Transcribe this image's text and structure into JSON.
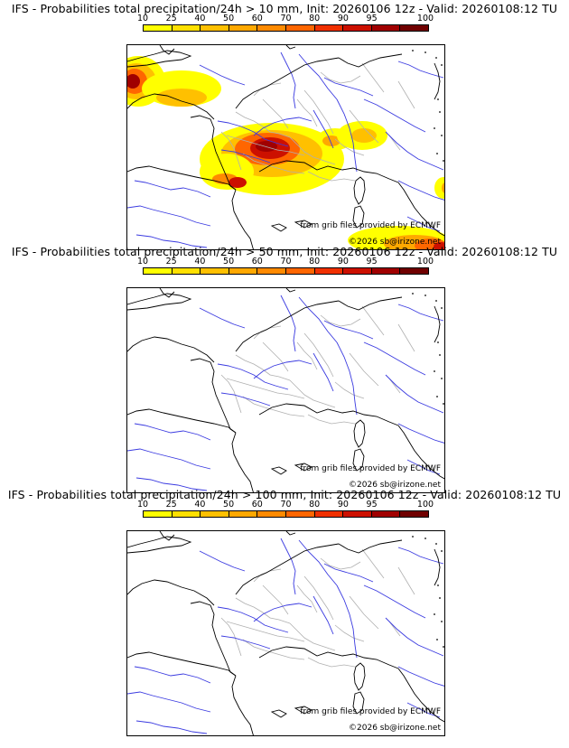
{
  "scale_ticks": [
    "10",
    "25",
    "40",
    "50",
    "60",
    "70",
    "80",
    "90",
    "95",
    "100"
  ],
  "scale_colors": [
    "#ffff00",
    "#ffe000",
    "#ffc000",
    "#ffa800",
    "#ff8a00",
    "#ff6600",
    "#f03000",
    "#cc1000",
    "#a00000",
    "#700000"
  ],
  "colors": {
    "coast": "#000000",
    "rivers": "#3a3ae0",
    "borders": "#b0b0b0"
  },
  "panels": [
    {
      "title": "IFS - Probabilities total precipitation/24h > 10 mm, Init: 20260106 12z - Valid: 20260108:12 TU",
      "credit_source": "from grib files provided by ECMWF",
      "credit_copyright": "©2026 sb@irizone.net",
      "has_precip": true
    },
    {
      "title": "IFS - Probabilities total precipitation/24h > 50 mm, Init: 20260106 12z - Valid: 20260108:12 TU",
      "credit_source": "from grib files provided by ECMWF",
      "credit_copyright": "©2026 sb@irizone.net",
      "has_precip": false
    },
    {
      "title": "IFS - Probabilities total precipitation/24h > 100 mm, Init: 20260106 12z - Valid: 20260108:12 TU",
      "credit_source": "from grib files provided by ECMWF",
      "credit_copyright": "©2026 sb@irizone.net",
      "has_precip": false
    }
  ]
}
